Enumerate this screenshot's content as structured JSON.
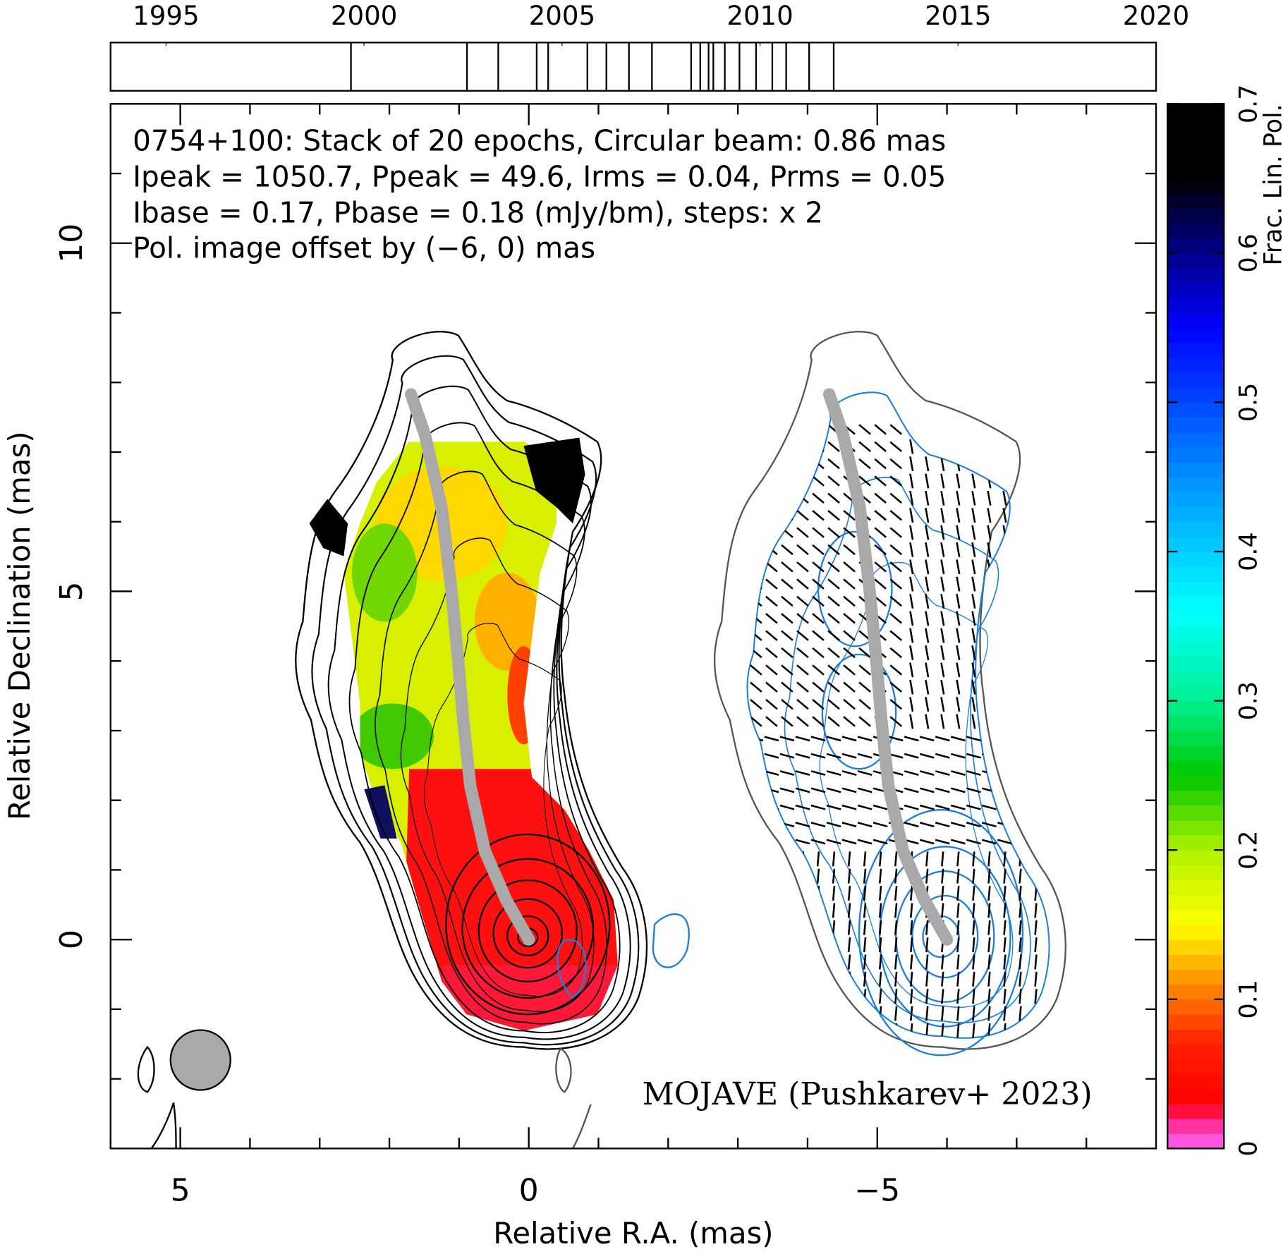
{
  "chart_data": [
    {
      "type": "timeline",
      "xlim": [
        1993.6,
        2020
      ],
      "xticks": [
        1995,
        2000,
        2005,
        2010,
        2015,
        2020
      ],
      "epochs": [
        1999.67,
        2002.6,
        2003.39,
        2004.36,
        2004.65,
        2005.64,
        2006.12,
        2006.69,
        2007.27,
        2008.26,
        2008.49,
        2008.7,
        2008.82,
        2009.11,
        2009.48,
        2009.9,
        2010.31,
        2010.66,
        2011.24,
        2011.86
      ]
    },
    {
      "type": "map",
      "annotations": [
        {
          "text": "0754+100: Stack of 20 epochs, Circular beam: 0.86 mas",
          "color": "#000000"
        },
        {
          "text": "Ipeak = 1050.7, Ppeak = 49.6, Irms = 0.04, Prms = 0.05",
          "color": "#000000"
        },
        {
          "text": "Ibase = 0.17, Pbase = 0.18 (mJy/bm), steps: x 2",
          "color": "#000000"
        },
        {
          "text": "Pol. image offset by (−6, 0) mas",
          "color": "#1a7fe0"
        }
      ],
      "credit": {
        "text": "MOJAVE (Pushkarev+ 2023)",
        "color": "#0a0adc"
      },
      "xlabel": "Relative R.A. (mas)",
      "ylabel": "Relative Declination (mas)",
      "xlim": [
        6,
        -9
      ],
      "ylim": [
        -3,
        12
      ],
      "xticks": [
        5,
        0,
        {
          "value": -5,
          "label": "−5"
        }
      ],
      "yticks": [
        0,
        5,
        10
      ],
      "xminor": [
        6,
        4,
        3,
        2,
        1,
        -1,
        -2,
        -3,
        -4,
        -6,
        -7,
        -8
      ],
      "yminor": [
        -2,
        -1,
        1,
        2,
        3,
        4,
        6,
        7,
        8,
        9,
        11
      ],
      "pol_offset": [
        -6,
        0
      ],
      "ridge": {
        "color": "#a9a9a9",
        "x": [
          1.69,
          1.49,
          1.25,
          1.11,
          1.02,
          0.94,
          0.84,
          0.63,
          0.32,
          0
        ],
        "y": [
          7.83,
          7.25,
          6.2,
          5.02,
          4.08,
          3.15,
          2.21,
          1.27,
          0.56,
          0
        ]
      },
      "beam": {
        "center": [
          4.71,
          -1.73
        ],
        "diameter": 0.86,
        "color": "#a9a9a9"
      }
    },
    {
      "type": "colorbar",
      "label": "Frac. Lin. Pol.",
      "ylim": [
        0,
        0.7
      ],
      "yticks": [
        0,
        0.1,
        0.2,
        0.3,
        0.4,
        0.5,
        0.6,
        0.7
      ],
      "stops": [
        {
          "value": 0,
          "color": "#ff66ff"
        },
        {
          "value": 0.02,
          "color": "#ff2080"
        },
        {
          "value": 0.03,
          "color": "#ff0000"
        },
        {
          "value": 0.07,
          "color": "#ff2000"
        },
        {
          "value": 0.11,
          "color": "#ff8c00"
        },
        {
          "value": 0.15,
          "color": "#ffff00"
        },
        {
          "value": 0.2,
          "color": "#b0f000"
        },
        {
          "value": 0.25,
          "color": "#00c800"
        },
        {
          "value": 0.3,
          "color": "#00f090"
        },
        {
          "value": 0.36,
          "color": "#00ffff"
        },
        {
          "value": 0.45,
          "color": "#0090ff"
        },
        {
          "value": 0.55,
          "color": "#0000ff"
        },
        {
          "value": 0.61,
          "color": "#000070"
        },
        {
          "value": 0.65,
          "color": "#000000"
        },
        {
          "value": 0.7,
          "color": "#000000"
        }
      ]
    }
  ]
}
